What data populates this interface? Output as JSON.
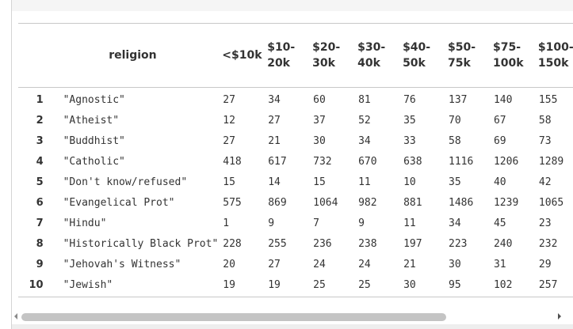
{
  "table": {
    "columns": [
      "religion",
      "<$10k",
      "$10-\n20k",
      "$20-\n30k",
      "$30-\n40k",
      "$40-\n50k",
      "$50-\n75k",
      "$75-\n100k",
      "$100-\n150k"
    ],
    "rows": [
      {
        "index": "1",
        "cells": [
          "\"Agnostic\"",
          "27",
          "34",
          "60",
          "81",
          "76",
          "137",
          "140",
          "155"
        ]
      },
      {
        "index": "2",
        "cells": [
          "\"Atheist\"",
          "12",
          "27",
          "37",
          "52",
          "35",
          "70",
          "67",
          "58"
        ]
      },
      {
        "index": "3",
        "cells": [
          "\"Buddhist\"",
          "27",
          "21",
          "30",
          "34",
          "33",
          "58",
          "69",
          "73"
        ]
      },
      {
        "index": "4",
        "cells": [
          "\"Catholic\"",
          "418",
          "617",
          "732",
          "670",
          "638",
          "1116",
          "1206",
          "1289"
        ]
      },
      {
        "index": "5",
        "cells": [
          "\"Don't know/refused\"",
          "15",
          "14",
          "15",
          "11",
          "10",
          "35",
          "40",
          "42"
        ]
      },
      {
        "index": "6",
        "cells": [
          "\"Evangelical Prot\"",
          "575",
          "869",
          "1064",
          "982",
          "881",
          "1486",
          "1239",
          "1065"
        ]
      },
      {
        "index": "7",
        "cells": [
          "\"Hindu\"",
          "1",
          "9",
          "7",
          "9",
          "11",
          "34",
          "45",
          "23"
        ]
      },
      {
        "index": "8",
        "cells": [
          "\"Historically Black Prot\"",
          "228",
          "255",
          "236",
          "238",
          "197",
          "223",
          "240",
          "232"
        ]
      },
      {
        "index": "9",
        "cells": [
          "\"Jehovah's Witness\"",
          "20",
          "27",
          "24",
          "24",
          "21",
          "30",
          "31",
          "29"
        ]
      },
      {
        "index": "10",
        "cells": [
          "\"Jewish\"",
          "19",
          "19",
          "25",
          "25",
          "30",
          "95",
          "102",
          "257"
        ]
      }
    ]
  },
  "scrollbar": {
    "horizontal_position": 0.0
  },
  "icons": {
    "scroll_left": "caret-left-icon",
    "scroll_right": "caret-right-icon"
  },
  "colors": {
    "text": "#333333",
    "border": "#c8c8c8",
    "scroll_thumb": "#c4c4c4"
  }
}
